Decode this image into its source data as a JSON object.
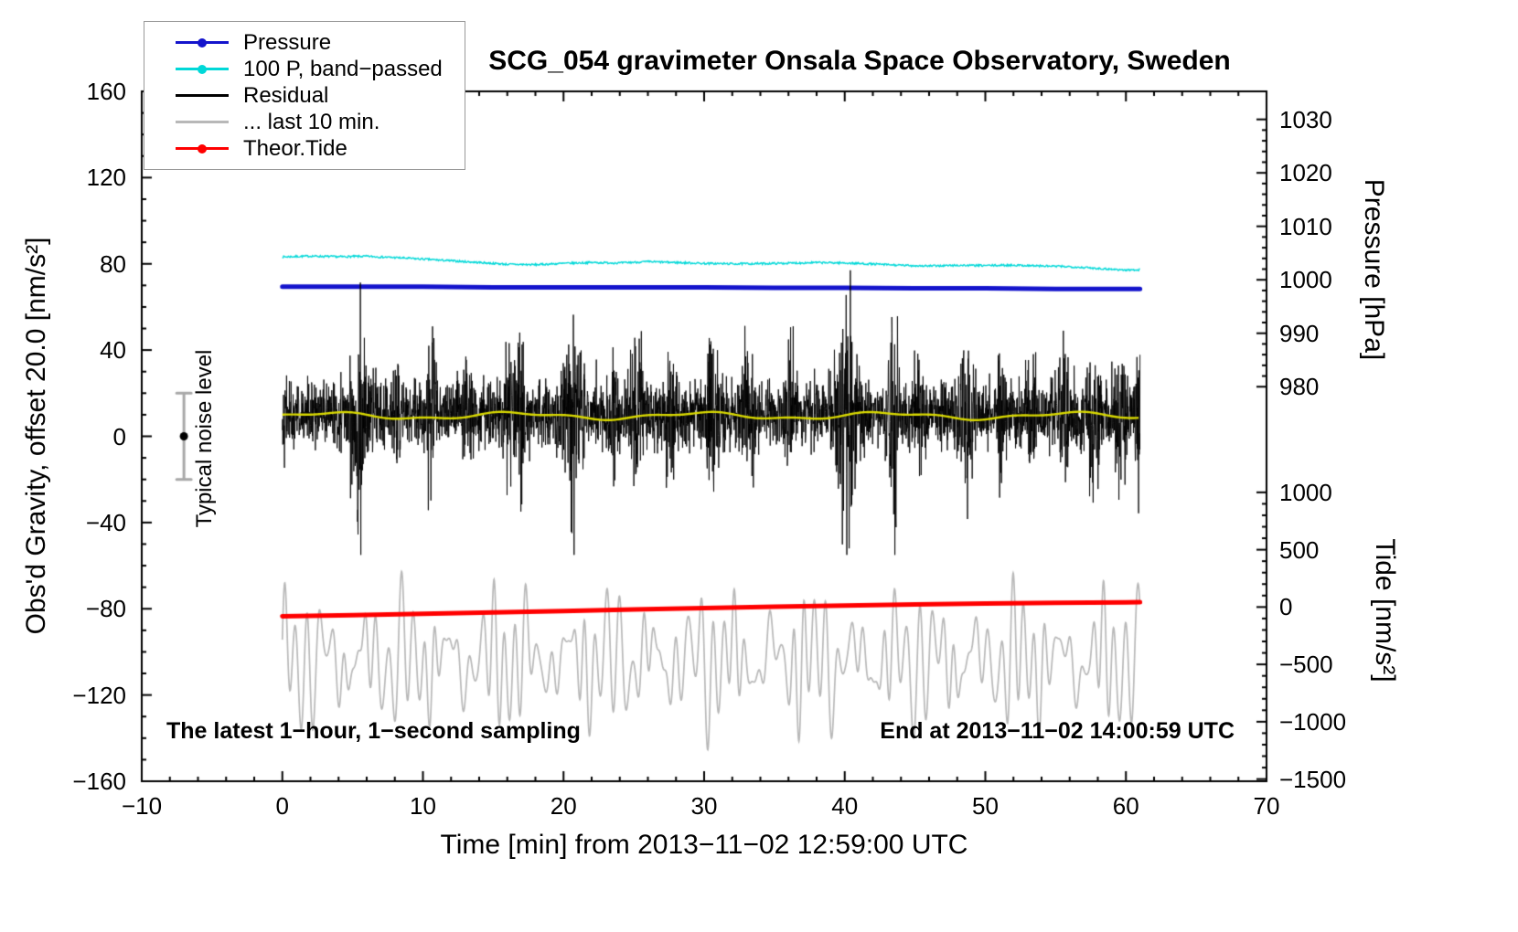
{
  "title": "SCG_054 gravimeter Onsala Space Observatory, Sweden",
  "annotations": {
    "sampling_note": "The latest 1−hour, 1−second sampling",
    "end_time": "End at 2013−11−02 14:00:59 UTC",
    "noise_label": "Typical noise level"
  },
  "legend": {
    "items": [
      {
        "label": "Pressure",
        "color": "#1414cc",
        "marker": "dot-line"
      },
      {
        "label": "100 P, band−passed",
        "color": "#00d8d8",
        "marker": "dot-line"
      },
      {
        "label": "Residual",
        "color": "#000000",
        "marker": "line"
      },
      {
        "label": "... last 10 min.",
        "color": "#b8b8b8",
        "marker": "line"
      },
      {
        "label": "Theor.Tide",
        "color": "#ff0000",
        "marker": "dot-line"
      }
    ]
  },
  "chart_data": {
    "type": "line",
    "title": "SCG_054 gravimeter Onsala Space Observatory, Sweden",
    "xlabel": "Time [min] from 2013−11−02 12:59:00 UTC",
    "ylabel": "Obs'd Gravity, offset 20.0 [nm/s²]",
    "y2label_pressure": "Pressure [hPa]",
    "y2label_tide": "Tide [nm/s²]",
    "xlim": [
      -10,
      70
    ],
    "ylim": [
      -160,
      160
    ],
    "x_ticks": [
      -10,
      0,
      10,
      20,
      30,
      40,
      50,
      60,
      70
    ],
    "x_minor_step": 2,
    "y_ticks": [
      -160,
      -120,
      -80,
      -40,
      0,
      40,
      80,
      120,
      160
    ],
    "y_minor_step": 10,
    "grid": false,
    "legend_position": "top-left",
    "pressure_axis": {
      "ticks": [
        1030,
        1020,
        1010,
        1000,
        990,
        980
      ],
      "minor_step": 2,
      "gravity_at_980": 23,
      "gravity_per_hpa": 2.48
    },
    "tide_axis": {
      "ticks": [
        1000,
        500,
        0,
        -500,
        -1000,
        -1500
      ],
      "minor_step": 100,
      "gravity_at_zero": -79.2,
      "gravity_per_unit": 0.0532
    },
    "colors": {
      "pressure": "#1414cc",
      "band_passed": "#00d8d8",
      "residual": "#000000",
      "residual_smooth": "#d8d800",
      "last10": "#b8b8b8",
      "tide": "#ff0000",
      "noise_bar": "#a8a8a8",
      "noise_dot": "#000000"
    },
    "series": {
      "pressure_hpa": {
        "units": "hPa",
        "x": [
          0,
          5,
          10,
          15,
          20,
          25,
          30,
          35,
          40,
          45,
          50,
          55,
          60,
          61
        ],
        "values": [
          998.7,
          998.7,
          998.7,
          998.6,
          998.6,
          998.6,
          998.6,
          998.5,
          998.5,
          998.4,
          998.4,
          998.3,
          998.3,
          998.3
        ]
      },
      "band_passed": {
        "units": "nm/s² (gravity axis)",
        "x": [
          0,
          2,
          4,
          6,
          8,
          10,
          12,
          14,
          16,
          18,
          20,
          22,
          24,
          26,
          28,
          30,
          32,
          34,
          36,
          38,
          40,
          42,
          44,
          46,
          48,
          50,
          52,
          54,
          56,
          58,
          60,
          61
        ],
        "values": [
          83.2,
          83.6,
          83.3,
          83.5,
          82.9,
          82.2,
          81.4,
          80.6,
          79.8,
          79.6,
          80.2,
          80.6,
          80.4,
          81.0,
          80.6,
          80.2,
          80.0,
          80.1,
          80.3,
          80.6,
          80.4,
          79.9,
          79.3,
          79.0,
          79.3,
          79.2,
          79.4,
          79.0,
          78.7,
          77.9,
          77.1,
          77.3
        ],
        "jitter": 0.9
      },
      "residual": {
        "units": "nm/s² (gravity axis)",
        "mean": 10,
        "sigma": 7.5,
        "clip": [
          -55,
          77
        ],
        "sample_rate_hz": 1,
        "spikes": [
          {
            "x": 5.4,
            "mult": 3.4,
            "w": 0.5
          },
          {
            "x": 8.1,
            "mult": 1.2,
            "w": 0.3
          },
          {
            "x": 10.6,
            "mult": 1.5,
            "w": 0.35
          },
          {
            "x": 13.2,
            "mult": 1.3,
            "w": 0.3
          },
          {
            "x": 16.6,
            "mult": 1.8,
            "w": 0.7
          },
          {
            "x": 20.6,
            "mult": 2.3,
            "w": 0.7
          },
          {
            "x": 23.6,
            "mult": 1.6,
            "w": 0.4
          },
          {
            "x": 25.2,
            "mult": 1.5,
            "w": 0.5
          },
          {
            "x": 27.6,
            "mult": 1.4,
            "w": 0.4
          },
          {
            "x": 30.6,
            "mult": 1.7,
            "w": 0.5
          },
          {
            "x": 33.1,
            "mult": 1.4,
            "w": 0.4
          },
          {
            "x": 36.1,
            "mult": 1.2,
            "w": 0.4
          },
          {
            "x": 40.1,
            "mult": 3.0,
            "w": 0.7
          },
          {
            "x": 43.5,
            "mult": 2.6,
            "w": 0.35
          },
          {
            "x": 45.3,
            "mult": 1.2,
            "w": 0.3
          },
          {
            "x": 48.6,
            "mult": 1.5,
            "w": 0.4
          },
          {
            "x": 51.2,
            "mult": 1.2,
            "w": 0.3
          },
          {
            "x": 53.2,
            "mult": 1.3,
            "w": 0.35
          },
          {
            "x": 55.6,
            "mult": 1.4,
            "w": 0.35
          },
          {
            "x": 57.6,
            "mult": 1.6,
            "w": 0.4
          },
          {
            "x": 59.6,
            "mult": 1.5,
            "w": 0.4
          },
          {
            "x": 60.9,
            "mult": 1.4,
            "w": 0.25
          }
        ]
      },
      "residual_smooth": {
        "units": "nm/s² (gravity axis)",
        "mean": 9.5,
        "wiggle": 1.4
      },
      "last10": {
        "units": "nm/s² (gravity axis)",
        "center": -104,
        "period_main": 0.82,
        "period_mod": [
          7.3,
          2.17
        ],
        "amp_base": 16,
        "amp_mod": [
          10,
          8
        ],
        "second": {
          "period": 2.9,
          "amp": 10
        },
        "clip": [
          -147,
          -59
        ]
      },
      "tide": {
        "units": "nm/s² (tide axis)",
        "x": [
          0,
          5,
          10,
          15,
          20,
          25,
          30,
          35,
          40,
          45,
          50,
          55,
          60,
          61
        ],
        "values": [
          -80,
          -70,
          -58,
          -46,
          -34,
          -22,
          -10,
          2,
          12,
          22,
          30,
          36,
          41,
          42
        ]
      },
      "noise_marker": {
        "x": -7,
        "value": 0,
        "error": 20
      }
    }
  }
}
